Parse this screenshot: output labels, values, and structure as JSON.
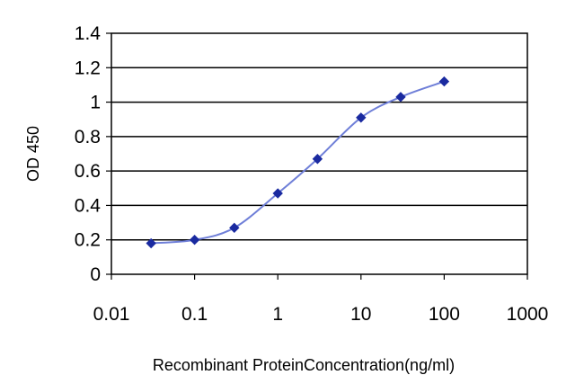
{
  "chart_data": {
    "type": "line",
    "xscale": "log",
    "xlabel": "Recombinant ProteinConcentration(ng/ml)",
    "ylabel": "OD 450",
    "xlim": [
      0.01,
      1000
    ],
    "ylim": [
      0,
      1.4
    ],
    "xticks": [
      0.01,
      0.1,
      1,
      10,
      100,
      1000
    ],
    "xtick_labels": [
      "0.01",
      "0.1",
      "1",
      "10",
      "100",
      "1000"
    ],
    "yticks": [
      0,
      0.2,
      0.4,
      0.6,
      0.8,
      1,
      1.2,
      1.4
    ],
    "ytick_labels": [
      "0",
      "0.2",
      "0.4",
      "0.6",
      "0.8",
      "1",
      "1.2",
      "1.4"
    ],
    "grid": "horizontal",
    "legend": "none",
    "series": [
      {
        "x": [
          0.03,
          0.1,
          0.3,
          1,
          3,
          10,
          30,
          100
        ],
        "y": [
          0.18,
          0.2,
          0.27,
          0.47,
          0.67,
          0.91,
          1.03,
          1.12
        ],
        "color": "#1a2aa0",
        "marker": "diamond"
      }
    ]
  }
}
